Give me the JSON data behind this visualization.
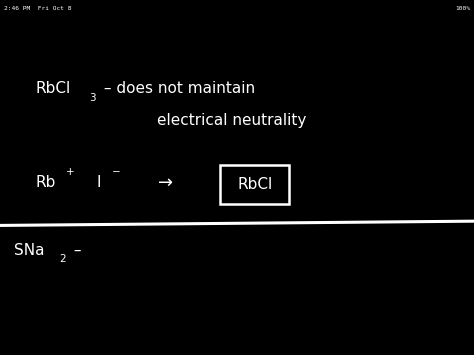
{
  "bg_color": "#000000",
  "text_color": "#ffffff",
  "status_bar_left": "2:46 PM  Fri Oct 8",
  "battery": "100%",
  "line1_a": "RbCl",
  "line1_sub": "3",
  "line1_b": " – does not maintain",
  "line2": "        electrical neutrality",
  "rb_text": "Rb",
  "rb_sup": "+",
  "i_text": "I",
  "i_sup": "−",
  "arrow": "→",
  "boxed": "RbCl",
  "bottom_a": "SNa",
  "bottom_sub": "2",
  "bottom_b": " –",
  "fig_width": 4.74,
  "fig_height": 3.55,
  "dpi": 100,
  "fs_main": 11,
  "fs_sup": 7.5,
  "fs_status": 4.5
}
